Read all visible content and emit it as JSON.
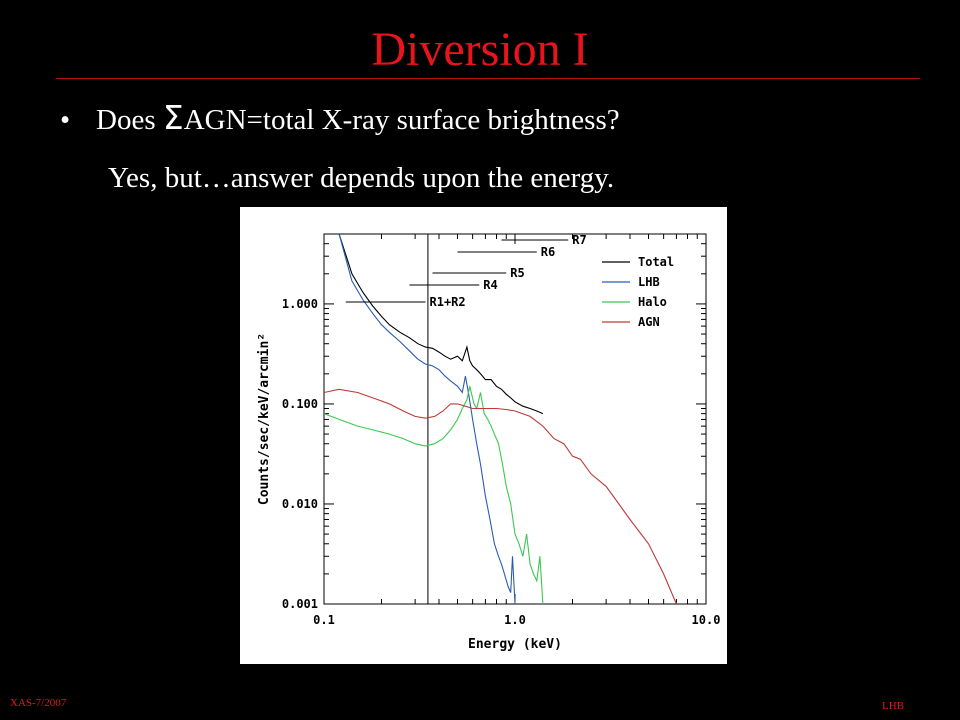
{
  "slide": {
    "title": "Diversion I",
    "bullet_prefix": "Does ",
    "bullet_symbol": "Σ",
    "bullet_suffix": "AGN=total X-ray surface brightness?",
    "bullet_marker": "•",
    "subtext": "Yes, but…answer depends upon the energy.",
    "footer_left": "XAS-7/2007",
    "footer_right": "LHB",
    "colors": {
      "title": "#e8141c",
      "background": "#000000",
      "text": "#ffffff"
    }
  },
  "chart_data": {
    "type": "line",
    "title": "",
    "xlabel": "Energy (keV)",
    "ylabel": "Counts/sec/keV/arcmin²",
    "xscale": "log",
    "yscale": "log",
    "xlim": [
      0.1,
      10.0
    ],
    "ylim": [
      0.001,
      5.0
    ],
    "x_ticks": [
      "0.1",
      "1.0",
      "10.0"
    ],
    "y_ticks": [
      "0.001",
      "0.010",
      "0.100",
      "1.000"
    ],
    "legend_position": "top-right",
    "series": [
      {
        "name": "Total",
        "color": "#000000",
        "x": [
          0.12,
          0.14,
          0.16,
          0.18,
          0.2,
          0.22,
          0.25,
          0.28,
          0.31,
          0.34,
          0.37,
          0.4,
          0.43,
          0.46,
          0.5,
          0.53,
          0.56,
          0.58,
          0.6,
          0.63,
          0.66,
          0.7,
          0.75,
          0.8,
          0.85,
          0.9,
          0.95,
          1.0,
          1.1,
          1.2,
          1.3,
          1.4
        ],
        "y": [
          5.0,
          2.0,
          1.3,
          0.95,
          0.75,
          0.62,
          0.52,
          0.46,
          0.4,
          0.37,
          0.36,
          0.33,
          0.3,
          0.28,
          0.3,
          0.27,
          0.37,
          0.27,
          0.24,
          0.22,
          0.2,
          0.175,
          0.175,
          0.15,
          0.14,
          0.125,
          0.115,
          0.105,
          0.095,
          0.09,
          0.085,
          0.08
        ]
      },
      {
        "name": "LHB",
        "color": "#2a5db0",
        "x": [
          0.12,
          0.14,
          0.16,
          0.18,
          0.2,
          0.22,
          0.25,
          0.28,
          0.31,
          0.34,
          0.37,
          0.4,
          0.43,
          0.46,
          0.5,
          0.53,
          0.55,
          0.57,
          0.6,
          0.63,
          0.66,
          0.7,
          0.74,
          0.78,
          0.82,
          0.85,
          0.88,
          0.92,
          0.95,
          0.97,
          1.0
        ],
        "y": [
          5.0,
          1.7,
          1.1,
          0.8,
          0.62,
          0.52,
          0.42,
          0.34,
          0.28,
          0.25,
          0.24,
          0.22,
          0.19,
          0.17,
          0.15,
          0.13,
          0.19,
          0.13,
          0.07,
          0.04,
          0.025,
          0.012,
          0.007,
          0.004,
          0.003,
          0.0025,
          0.002,
          0.0015,
          0.0013,
          0.003,
          0.001
        ]
      },
      {
        "name": "Halo",
        "color": "#3cc850",
        "x": [
          0.1,
          0.12,
          0.15,
          0.18,
          0.22,
          0.26,
          0.3,
          0.34,
          0.38,
          0.42,
          0.46,
          0.5,
          0.53,
          0.56,
          0.58,
          0.61,
          0.63,
          0.66,
          0.69,
          0.72,
          0.75,
          0.78,
          0.82,
          0.86,
          0.9,
          0.95,
          1.0,
          1.05,
          1.1,
          1.15,
          1.2,
          1.25,
          1.3,
          1.35,
          1.4
        ],
        "y": [
          0.08,
          0.07,
          0.06,
          0.055,
          0.05,
          0.045,
          0.04,
          0.038,
          0.04,
          0.045,
          0.055,
          0.07,
          0.09,
          0.11,
          0.15,
          0.1,
          0.09,
          0.13,
          0.08,
          0.07,
          0.06,
          0.05,
          0.04,
          0.025,
          0.015,
          0.01,
          0.005,
          0.004,
          0.003,
          0.005,
          0.0025,
          0.002,
          0.0017,
          0.003,
          0.001
        ]
      },
      {
        "name": "AGN",
        "color": "#c03838",
        "x": [
          0.1,
          0.12,
          0.15,
          0.18,
          0.22,
          0.26,
          0.3,
          0.34,
          0.38,
          0.42,
          0.46,
          0.5,
          0.55,
          0.6,
          0.7,
          0.8,
          0.9,
          1.0,
          1.2,
          1.4,
          1.6,
          1.8,
          2.0,
          2.2,
          2.5,
          3.0,
          3.5,
          4.0,
          5.0,
          6.0,
          7.0,
          7.5
        ],
        "y": [
          0.13,
          0.14,
          0.13,
          0.115,
          0.1,
          0.085,
          0.075,
          0.072,
          0.075,
          0.085,
          0.1,
          0.1,
          0.095,
          0.09,
          0.09,
          0.09,
          0.088,
          0.085,
          0.075,
          0.06,
          0.045,
          0.04,
          0.03,
          0.028,
          0.02,
          0.015,
          0.01,
          0.007,
          0.004,
          0.002,
          0.001,
          0.0008
        ]
      }
    ],
    "markers": [
      {
        "label": "R1+R2",
        "x_start": 0.13,
        "x_end": 0.34
      },
      {
        "label": "R4",
        "x_start": 0.28,
        "x_end": 0.65
      },
      {
        "label": "R5",
        "x_start": 0.37,
        "x_end": 0.9
      },
      {
        "label": "R6",
        "x_start": 0.5,
        "x_end": 1.3
      },
      {
        "label": "R7",
        "x_start": 0.85,
        "x_end": 1.9
      }
    ],
    "vertical_line_x": 0.35
  }
}
